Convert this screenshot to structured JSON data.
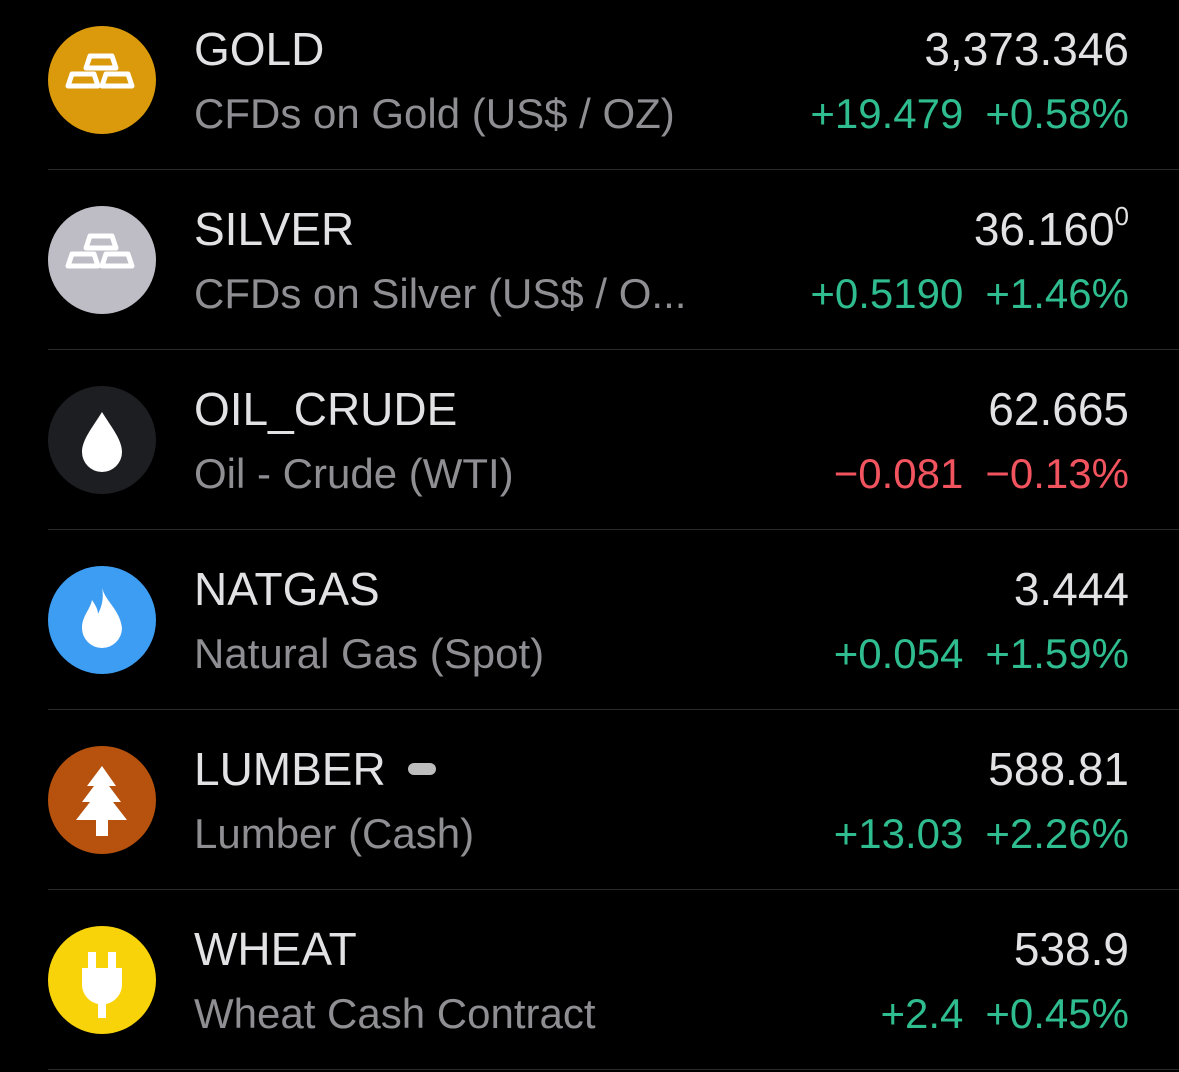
{
  "rows": [
    {
      "symbol": "GOLD",
      "description": "CFDs on Gold (US$ / OZ)",
      "price": "3,373.346",
      "change": "+19.479",
      "change_pct": "+0.58%"
    },
    {
      "symbol": "SILVER",
      "description": "CFDs on Silver (US$ / O...",
      "price": "36.160",
      "price_sup": "0",
      "change": "+0.5190",
      "change_pct": "+1.46%"
    },
    {
      "symbol": "OIL_CRUDE",
      "description": "Oil - Crude (WTI)",
      "price": "62.665",
      "change": "−0.081",
      "change_pct": "−0.13%"
    },
    {
      "symbol": "NATGAS",
      "description": "Natural Gas (Spot)",
      "price": "3.444",
      "change": "+0.054",
      "change_pct": "+1.59%"
    },
    {
      "symbol": "LUMBER",
      "description": "Lumber (Cash)",
      "price": "588.81",
      "change": "+13.03",
      "change_pct": "+2.26%"
    },
    {
      "symbol": "WHEAT",
      "description": "Wheat Cash Contract",
      "price": "538.9",
      "change": "+2.4",
      "change_pct": "+0.45%"
    }
  ]
}
